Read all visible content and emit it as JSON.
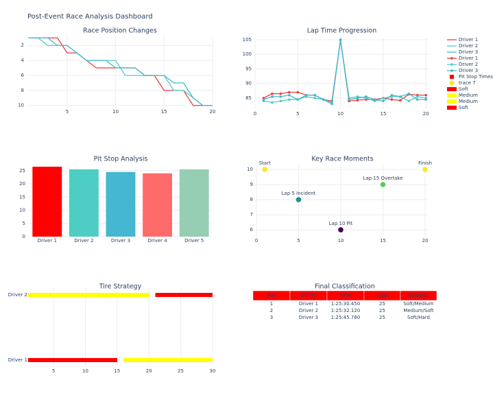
{
  "title": "Post-Event Race Analysis Dashboard",
  "chart_data": [
    {
      "type": "line",
      "title": "Race Position Changes",
      "x": [
        1,
        2,
        3,
        4,
        5,
        6,
        7,
        8,
        9,
        10,
        11,
        12,
        13,
        14,
        15,
        16,
        17,
        18,
        19,
        20
      ],
      "xlim": [
        0.9,
        20
      ],
      "xticks": [
        5,
        10,
        15,
        20
      ],
      "ylim": [
        10.3,
        0.7
      ],
      "yticks": [
        2,
        4,
        6,
        8,
        10
      ],
      "grid": true,
      "series": [
        {
          "name": "Driver 1",
          "color": "#ee3b3b",
          "values": [
            1,
            1,
            1,
            1,
            3,
            3,
            4,
            5,
            5,
            5,
            5,
            5,
            6,
            6,
            8,
            8,
            8,
            10,
            10,
            10
          ]
        },
        {
          "name": "Driver 2",
          "color": "#4ecdc4",
          "values": [
            1,
            1,
            2,
            2,
            2,
            3,
            4,
            4,
            4,
            4,
            6,
            6,
            6,
            6,
            6,
            8,
            8,
            9,
            10,
            10
          ]
        },
        {
          "name": "Driver 3",
          "color": "#45b7d1",
          "values": [
            1,
            1,
            1,
            2,
            2,
            3,
            4,
            4,
            4,
            5,
            5,
            5,
            6,
            6,
            6,
            7,
            7,
            9,
            10,
            10
          ]
        }
      ]
    },
    {
      "type": "line",
      "title": "Lap Time Progression",
      "markers": true,
      "x": [
        1,
        2,
        3,
        4,
        5,
        6,
        7,
        8,
        9,
        10,
        11,
        12,
        13,
        14,
        15,
        16,
        17,
        18,
        19,
        20
      ],
      "xlim": [
        0,
        20.3
      ],
      "xticks": [
        0,
        5,
        10,
        15,
        20
      ],
      "ylim": [
        81,
        105.7
      ],
      "yticks": [
        85,
        90,
        95,
        100,
        105
      ],
      "grid": true,
      "series": [
        {
          "name": "Driver 1",
          "color": "#ee3b3b",
          "values": [
            85,
            86.5,
            86.5,
            87,
            87,
            86,
            86,
            84.5,
            84,
            105,
            84,
            84.3,
            84.5,
            84.5,
            85,
            84.5,
            84.2,
            86.3,
            86,
            86
          ]
        },
        {
          "name": "Driver 2",
          "color": "#4ecdc4",
          "values": [
            84,
            83.5,
            84,
            84.5,
            84.5,
            85.5,
            85,
            84.5,
            83.5,
            105,
            85,
            85.5,
            85,
            84,
            85,
            85.5,
            85.5,
            84,
            85.5,
            85
          ]
        },
        {
          "name": "Driver 3",
          "color": "#45b7d1",
          "values": [
            84.5,
            85.5,
            85.5,
            86,
            84.5,
            86,
            86,
            84.5,
            83,
            105,
            84.5,
            85,
            85.5,
            84.5,
            84,
            86,
            85.5,
            86.5,
            84.5,
            84.5
          ]
        }
      ]
    },
    {
      "type": "bar",
      "title": "Pit Stop Analysis",
      "name": "Pit Stop Times",
      "categories": [
        "Driver 1",
        "Driver 2",
        "Driver 3",
        "Driver 4",
        "Driver 5"
      ],
      "values": [
        26.5,
        25.5,
        24.5,
        24,
        25.5
      ],
      "colors": [
        "#ff0000",
        "#4ecdc4",
        "#45b7d1",
        "#ff6b6b",
        "#96ceb4"
      ],
      "ylim": [
        0,
        27.3
      ],
      "yticks": [
        0,
        5,
        10,
        15,
        20,
        25
      ],
      "grid": true
    },
    {
      "type": "scatter",
      "title": "Key Race Moments",
      "name": "trace 7",
      "x": [
        1,
        5,
        10,
        15,
        20
      ],
      "values": [
        10,
        8,
        6,
        9,
        10
      ],
      "text": [
        "Start",
        "Lap 5 Incident",
        "Lap 10 Pit",
        "Lap 15 Overtake",
        "Finish"
      ],
      "colors": [
        "#fde725",
        "#21918c",
        "#440154",
        "#5ec962",
        "#fde725"
      ],
      "xlim": [
        0,
        20.4
      ],
      "xticks": [
        0,
        5,
        10,
        15,
        20
      ],
      "ylim": [
        5.55,
        10.32
      ],
      "yticks": [
        6,
        7,
        8,
        9,
        10
      ],
      "grid": true
    },
    {
      "type": "timeline",
      "title": "Tire Strategy",
      "categories": [
        "Driver 1",
        "Driver 2"
      ],
      "xlim": [
        1,
        30
      ],
      "xticks": [
        5,
        10,
        15,
        20,
        25,
        30
      ],
      "grid": true,
      "series": [
        {
          "name": "Soft",
          "color": "#ff0000",
          "category": 0,
          "base": 1,
          "value": 14
        },
        {
          "name": "Medium",
          "color": "#ffff00",
          "category": 0,
          "base": 16,
          "value": 14
        },
        {
          "name": "Medium",
          "color": "#ffff00",
          "category": 1,
          "base": 1,
          "value": 19
        },
        {
          "name": "Soft",
          "color": "#ff0000",
          "category": 1,
          "base": 21,
          "value": 9
        }
      ]
    }
  ],
  "table": {
    "title": "Final Classification",
    "header_color": "#ff0000",
    "header": [
      "Pos",
      "Driver",
      "Time",
      "Laps",
      "Strategy"
    ],
    "rows": [
      [
        "1",
        "Driver 1",
        "1:25:30.450",
        "25",
        "Soft/Medium"
      ],
      [
        "2",
        "Driver 2",
        "1:25:32.120",
        "25",
        "Medium/Soft"
      ],
      [
        "3",
        "Driver 3",
        "1:25:45.780",
        "25",
        "Soft/Hard"
      ]
    ]
  }
}
